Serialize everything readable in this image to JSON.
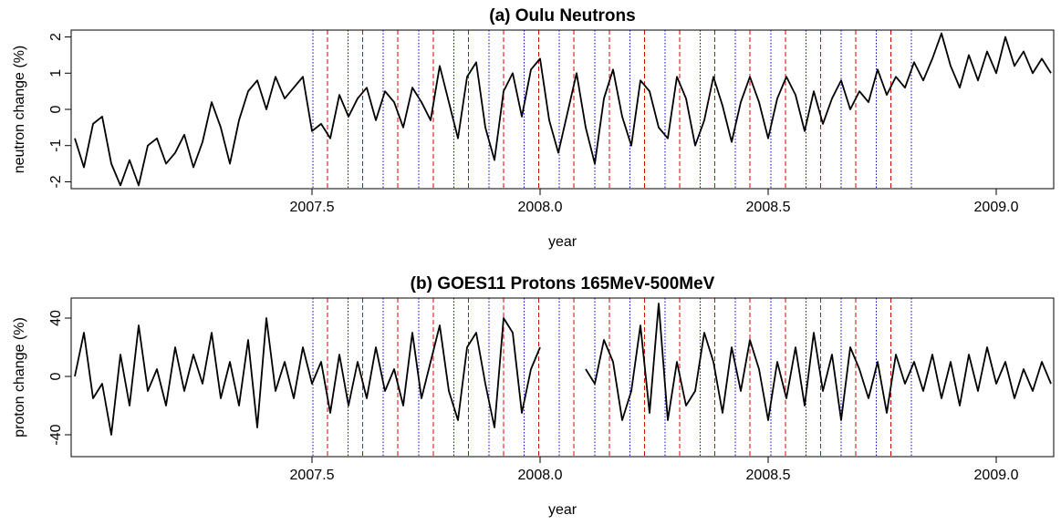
{
  "chart_data": [
    {
      "type": "line",
      "title": "(a) Oulu Neutrons",
      "xlabel": "year",
      "ylabel": "neutron change (%)",
      "xlim": [
        2006.972,
        2009.126
      ],
      "xticks": [
        2007.5,
        {
          "value": 2008,
          "label": "2008.0"
        },
        2008.5,
        {
          "value": 2009,
          "label": "2009.0"
        }
      ],
      "ylim": [
        -2.19,
        2.19
      ],
      "yticks": [
        -2,
        -1,
        0,
        1,
        2
      ],
      "grid": false,
      "x": [
        2006.98,
        2007.0,
        2007.02,
        2007.04,
        2007.06,
        2007.08,
        2007.1,
        2007.12,
        2007.14,
        2007.16,
        2007.18,
        2007.2,
        2007.22,
        2007.24,
        2007.26,
        2007.28,
        2007.3,
        2007.32,
        2007.34,
        2007.36,
        2007.38,
        2007.4,
        2007.42,
        2007.44,
        2007.46,
        2007.48,
        2007.5,
        2007.52,
        2007.54,
        2007.56,
        2007.58,
        2007.6,
        2007.62,
        2007.64,
        2007.66,
        2007.68,
        2007.7,
        2007.72,
        2007.74,
        2007.76,
        2007.78,
        2007.8,
        2007.82,
        2007.84,
        2007.86,
        2007.88,
        2007.9,
        2007.92,
        2007.94,
        2007.96,
        2007.98,
        2008.0,
        2008.02,
        2008.04,
        2008.06,
        2008.08,
        2008.1,
        2008.12,
        2008.14,
        2008.16,
        2008.18,
        2008.2,
        2008.22,
        2008.24,
        2008.26,
        2008.28,
        2008.3,
        2008.32,
        2008.34,
        2008.36,
        2008.38,
        2008.4,
        2008.42,
        2008.44,
        2008.46,
        2008.48,
        2008.5,
        2008.52,
        2008.54,
        2008.56,
        2008.58,
        2008.6,
        2008.62,
        2008.64,
        2008.66,
        2008.68,
        2008.7,
        2008.72,
        2008.74,
        2008.76,
        2008.78,
        2008.8,
        2008.82,
        2008.84,
        2008.86,
        2008.88,
        2008.9,
        2008.92,
        2008.94,
        2008.96,
        2008.98,
        2009.0,
        2009.02,
        2009.04,
        2009.06,
        2009.08,
        2009.1,
        2009.12
      ],
      "series": [
        {
          "color": "#000000",
          "values": [
            -0.8,
            -1.6,
            -0.4,
            -0.2,
            -1.5,
            -2.1,
            -1.4,
            -2.1,
            -1.0,
            -0.8,
            -1.5,
            -1.2,
            -0.7,
            -1.6,
            -0.9,
            0.2,
            -0.5,
            -1.5,
            -0.3,
            0.5,
            0.8,
            0.0,
            0.9,
            0.3,
            0.6,
            0.9,
            -0.6,
            -0.4,
            -0.8,
            0.4,
            -0.2,
            0.3,
            0.6,
            -0.3,
            0.5,
            0.2,
            -0.5,
            0.6,
            0.2,
            -0.3,
            1.2,
            0.2,
            -0.8,
            0.9,
            1.3,
            -0.5,
            -1.4,
            0.5,
            1.0,
            -0.2,
            1.1,
            1.4,
            -0.3,
            -1.2,
            -0.1,
            1.0,
            -0.5,
            -1.5,
            0.3,
            1.1,
            -0.2,
            -1.0,
            0.8,
            0.5,
            -0.5,
            -0.8,
            0.9,
            0.3,
            -1.0,
            -0.3,
            0.9,
            0.1,
            -0.9,
            0.2,
            0.9,
            0.2,
            -0.8,
            0.3,
            0.9,
            0.4,
            -0.6,
            0.5,
            -0.4,
            0.3,
            0.8,
            0.0,
            0.5,
            0.2,
            1.1,
            0.4,
            0.9,
            0.6,
            1.3,
            0.8,
            1.4,
            2.1,
            1.2,
            0.6,
            1.5,
            0.8,
            1.6,
            1.0,
            2.0,
            1.2,
            1.6,
            1.0,
            1.4,
            1.0
          ]
        }
      ],
      "vlines": [
        {
          "color": "#0000cc",
          "style": "dotted",
          "x": [
            2007.502,
            2007.579,
            2007.656,
            2007.734,
            2007.811,
            2007.888,
            2007.965,
            2008.042,
            2008.12,
            2008.197,
            2008.274,
            2008.351,
            2008.428,
            2008.506,
            2008.583,
            2008.66,
            2008.737,
            2008.814
          ]
        },
        {
          "color": "#dd0000",
          "style": "dashed",
          "x": [
            2007.534,
            2007.611,
            2007.688,
            2007.766,
            2007.843,
            2007.92,
            2007.997,
            2008.074,
            2008.152,
            2008.229,
            2008.306,
            2008.383,
            2008.46,
            2008.538,
            2008.615,
            2008.692,
            2008.769
          ]
        }
      ]
    },
    {
      "type": "line",
      "title": "(b) GOES11 Protons 165MeV-500MeV",
      "xlabel": "year",
      "ylabel": "proton change (%)",
      "xlim": [
        2006.972,
        2009.126
      ],
      "xticks": [
        2007.5,
        {
          "value": 2008,
          "label": "2008.0"
        },
        2008.5,
        {
          "value": 2009,
          "label": "2009.0"
        }
      ],
      "ylim": [
        -55,
        53.75
      ],
      "yticks": [
        -40,
        0,
        40
      ],
      "grid": false,
      "x": [
        2006.98,
        2007.0,
        2007.02,
        2007.04,
        2007.06,
        2007.08,
        2007.1,
        2007.12,
        2007.14,
        2007.16,
        2007.18,
        2007.2,
        2007.22,
        2007.24,
        2007.26,
        2007.28,
        2007.3,
        2007.32,
        2007.34,
        2007.36,
        2007.38,
        2007.4,
        2007.42,
        2007.44,
        2007.46,
        2007.48,
        2007.5,
        2007.52,
        2007.54,
        2007.56,
        2007.58,
        2007.6,
        2007.62,
        2007.64,
        2007.66,
        2007.68,
        2007.7,
        2007.72,
        2007.74,
        2007.76,
        2007.78,
        2007.8,
        2007.82,
        2007.84,
        2007.86,
        2007.88,
        2007.9,
        2007.92,
        2007.94,
        2007.96,
        2007.98,
        2008.0,
        2008.02,
        2008.04,
        2008.06,
        2008.08,
        2008.1,
        2008.12,
        2008.14,
        2008.16,
        2008.18,
        2008.2,
        2008.22,
        2008.24,
        2008.26,
        2008.28,
        2008.3,
        2008.32,
        2008.34,
        2008.36,
        2008.38,
        2008.4,
        2008.42,
        2008.44,
        2008.46,
        2008.48,
        2008.5,
        2008.52,
        2008.54,
        2008.56,
        2008.58,
        2008.6,
        2008.62,
        2008.64,
        2008.66,
        2008.68,
        2008.7,
        2008.72,
        2008.74,
        2008.76,
        2008.78,
        2008.8,
        2008.82,
        2008.84,
        2008.86,
        2008.88,
        2008.9,
        2008.92,
        2008.94,
        2008.96,
        2008.98,
        2009.0,
        2009.02,
        2009.04,
        2009.06,
        2009.08,
        2009.1,
        2009.12
      ],
      "series": [
        {
          "color": "#000000",
          "values": [
            0,
            30,
            -15,
            -5,
            -40,
            15,
            -20,
            35,
            -10,
            5,
            -20,
            20,
            -10,
            15,
            -5,
            30,
            -15,
            10,
            -20,
            25,
            -35,
            40,
            -10,
            10,
            -15,
            20,
            -5,
            10,
            -25,
            15,
            -20,
            10,
            -15,
            20,
            -10,
            5,
            -20,
            30,
            -15,
            10,
            35,
            -10,
            -30,
            20,
            30,
            -5,
            -35,
            40,
            30,
            -25,
            5,
            20,
            null,
            null,
            null,
            null,
            5,
            -5,
            25,
            10,
            -30,
            -10,
            35,
            -25,
            50,
            -30,
            10,
            -20,
            -10,
            30,
            10,
            -25,
            20,
            -10,
            25,
            5,
            -30,
            10,
            -15,
            20,
            -20,
            30,
            -10,
            15,
            -30,
            20,
            5,
            -15,
            10,
            -25,
            15,
            -5,
            10,
            -10,
            15,
            -15,
            10,
            -20,
            15,
            -10,
            20,
            -5,
            10,
            -15,
            5,
            -10,
            10,
            -5
          ]
        }
      ],
      "vlines": [
        {
          "color": "#0000cc",
          "style": "dotted",
          "x": [
            2007.502,
            2007.579,
            2007.656,
            2007.734,
            2007.811,
            2007.888,
            2007.965,
            2008.042,
            2008.12,
            2008.197,
            2008.274,
            2008.351,
            2008.428,
            2008.506,
            2008.583,
            2008.66,
            2008.737,
            2008.814
          ]
        },
        {
          "color": "#dd0000",
          "style": "dashed",
          "x": [
            2007.534,
            2007.611,
            2007.688,
            2007.766,
            2007.843,
            2007.92,
            2007.997,
            2008.074,
            2008.152,
            2008.229,
            2008.306,
            2008.383,
            2008.46,
            2008.538,
            2008.615,
            2008.692,
            2008.769
          ]
        }
      ]
    }
  ]
}
